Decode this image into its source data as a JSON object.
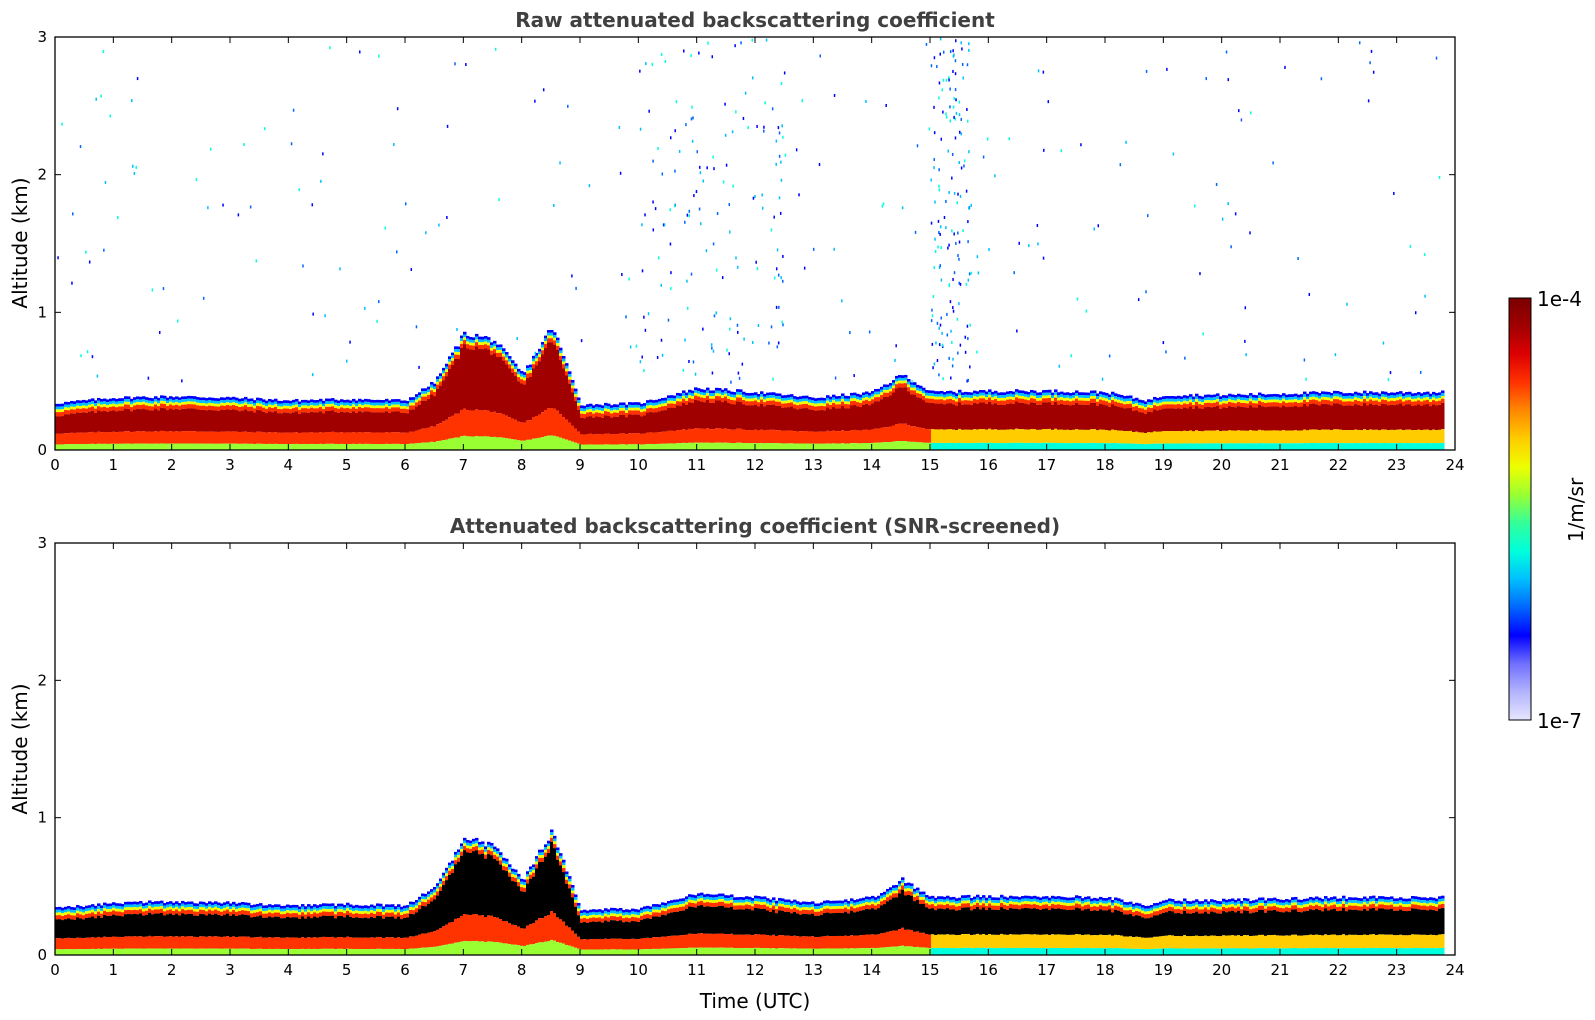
{
  "chart_data": [
    {
      "type": "heatmap",
      "title": "Raw attenuated backscattering coefficient",
      "xlabel": "",
      "ylabel": "Altitude (km)",
      "xlim": [
        0,
        24
      ],
      "ylim": [
        0,
        3
      ],
      "xticks": [
        "0",
        "1",
        "2",
        "3",
        "4",
        "5",
        "6",
        "7",
        "8",
        "9",
        "10",
        "11",
        "12",
        "13",
        "14",
        "15",
        "16",
        "17",
        "18",
        "19",
        "20",
        "21",
        "22",
        "23",
        "24"
      ],
      "yticks": [
        "0",
        "1",
        "2",
        "3"
      ],
      "screened": false,
      "layer_top_profile": {
        "time": [
          0,
          1,
          2,
          3,
          4,
          5,
          6,
          6.5,
          7,
          7.5,
          8,
          8.5,
          9,
          10,
          11,
          12,
          13,
          14,
          14.5,
          15,
          16,
          17,
          18,
          18.7,
          19,
          20,
          21,
          22,
          23,
          23.8
        ],
        "top_km": [
          0.34,
          0.38,
          0.39,
          0.38,
          0.36,
          0.37,
          0.36,
          0.5,
          0.85,
          0.8,
          0.55,
          0.9,
          0.33,
          0.34,
          0.45,
          0.42,
          0.38,
          0.42,
          0.55,
          0.42,
          0.43,
          0.43,
          0.42,
          0.36,
          0.4,
          0.4,
          0.41,
          0.42,
          0.42,
          0.42
        ]
      }
    },
    {
      "type": "heatmap",
      "title": "Attenuated backscattering coefficient (SNR-screened)",
      "xlabel": "Time (UTC)",
      "ylabel": "Altitude (km)",
      "xlim": [
        0,
        24
      ],
      "ylim": [
        0,
        3
      ],
      "xticks": [
        "0",
        "1",
        "2",
        "3",
        "4",
        "5",
        "6",
        "7",
        "8",
        "9",
        "10",
        "11",
        "12",
        "13",
        "14",
        "15",
        "16",
        "17",
        "18",
        "19",
        "20",
        "21",
        "22",
        "23",
        "24"
      ],
      "yticks": [
        "0",
        "1",
        "2",
        "3"
      ],
      "screened": true,
      "layer_top_profile": {
        "time": [
          0,
          1,
          2,
          3,
          4,
          5,
          6,
          6.5,
          7,
          7.5,
          8,
          8.5,
          9,
          10,
          11,
          12,
          13,
          14,
          14.5,
          15,
          16,
          17,
          18,
          18.7,
          19,
          20,
          21,
          22,
          23,
          23.8
        ],
        "top_km": [
          0.34,
          0.38,
          0.39,
          0.38,
          0.36,
          0.37,
          0.36,
          0.5,
          0.85,
          0.8,
          0.55,
          0.9,
          0.33,
          0.34,
          0.45,
          0.42,
          0.38,
          0.42,
          0.55,
          0.42,
          0.43,
          0.43,
          0.42,
          0.36,
          0.4,
          0.4,
          0.41,
          0.42,
          0.42,
          0.42
        ]
      }
    }
  ],
  "colorbar": {
    "label": "1/m/sr",
    "max_label": "1e-4",
    "min_label": "1e-7",
    "colors": [
      "#e6e6ff",
      "#b3b3ff",
      "#7070ff",
      "#0000ff",
      "#0066ff",
      "#00bfff",
      "#00ffdd",
      "#33ff99",
      "#99ff33",
      "#eeff00",
      "#ffcc00",
      "#ff8800",
      "#ff3300",
      "#dd0000",
      "#a00000",
      "#7a0000"
    ]
  }
}
